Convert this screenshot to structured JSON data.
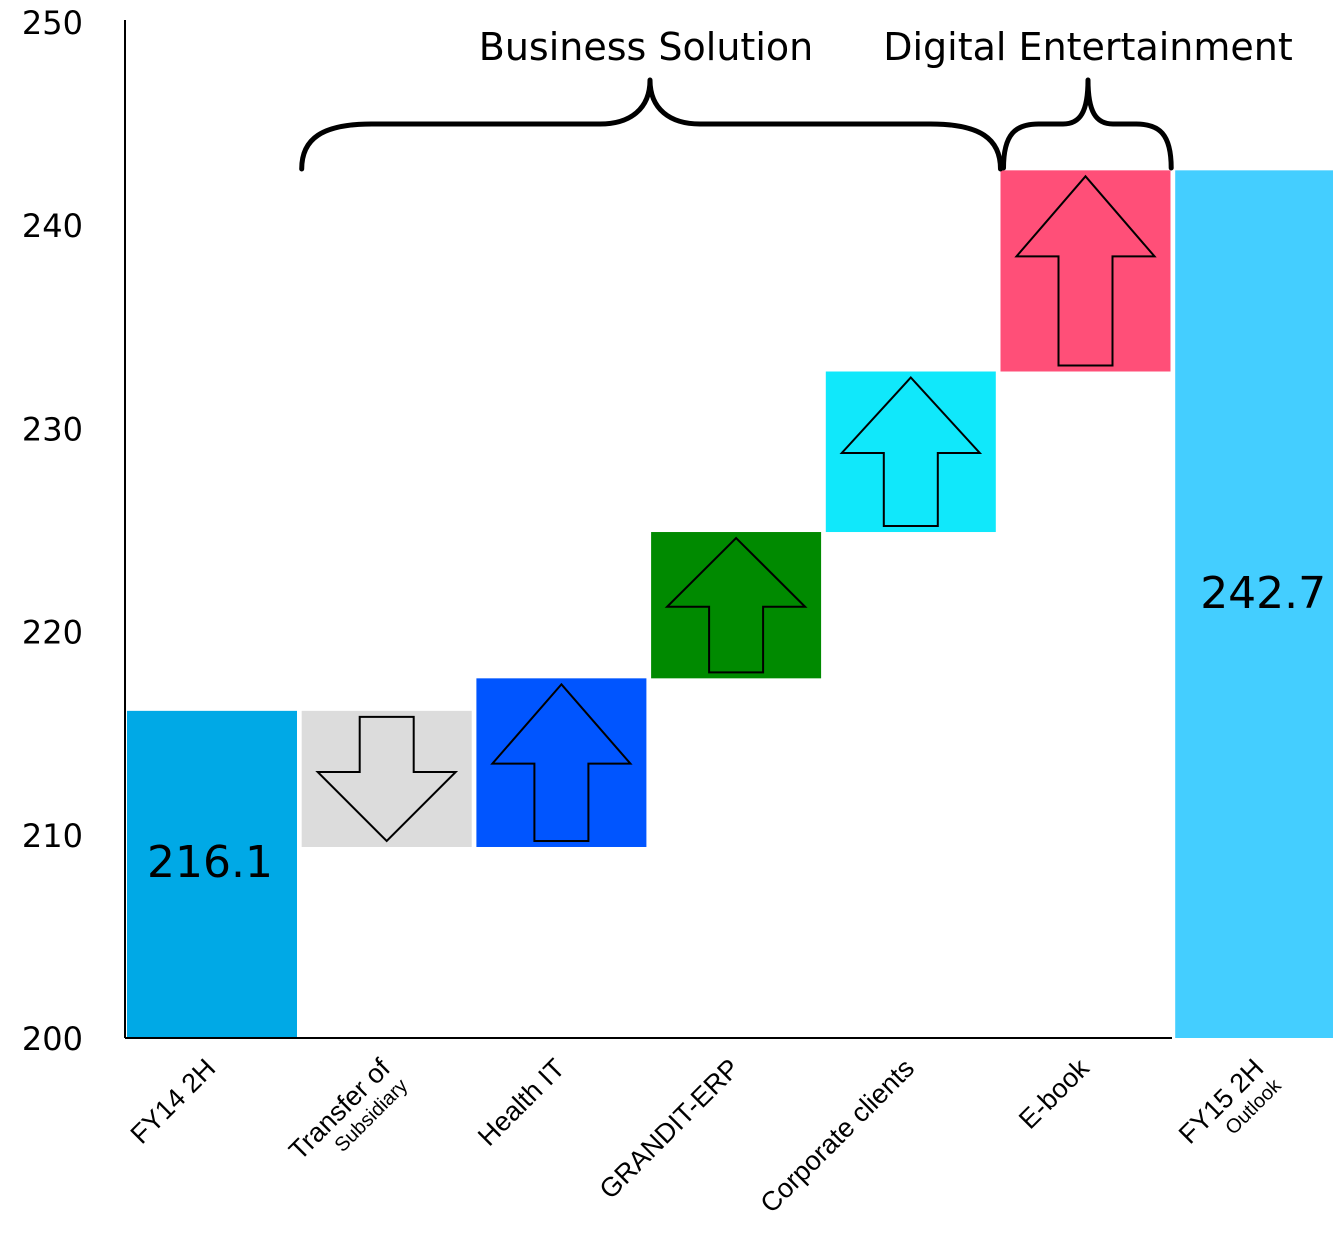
{
  "chart_data": {
    "type": "waterfall",
    "title": "",
    "xlabel": "",
    "ylabel": "",
    "ylim": [
      200,
      250
    ],
    "yticks": [
      200,
      210,
      220,
      230,
      240,
      250
    ],
    "bars": [
      {
        "category": "FY14 2H",
        "kind": "total",
        "value": 216.1,
        "label": "216.1",
        "color": "#00a9e6"
      },
      {
        "category": "Transfer of",
        "sub": "Subsidiary",
        "kind": "decrease",
        "from": 216.1,
        "to": 209.4,
        "color": "#dcdcdc"
      },
      {
        "category": "Health IT",
        "kind": "increase",
        "from": 209.4,
        "to": 217.7,
        "color": "#0055ff"
      },
      {
        "category": "GRANDIT-ERP",
        "kind": "increase",
        "from": 217.7,
        "to": 224.9,
        "color": "#008a00"
      },
      {
        "category": "Corporate clients",
        "kind": "increase",
        "from": 224.9,
        "to": 232.8,
        "color": "#10e8fb"
      },
      {
        "category": "E-book",
        "kind": "increase",
        "from": 232.8,
        "to": 242.7,
        "color": "#ff4f78"
      },
      {
        "category": "FY15 2H",
        "sub": "Outlook",
        "kind": "total",
        "value": 242.7,
        "label": "242.7",
        "color": "#44ceff"
      }
    ],
    "groups": [
      {
        "label": "Business Solution",
        "start_index": 1,
        "end_index": 4
      },
      {
        "label": "Digital Entertainment",
        "start_index": 5,
        "end_index": 5
      }
    ]
  }
}
